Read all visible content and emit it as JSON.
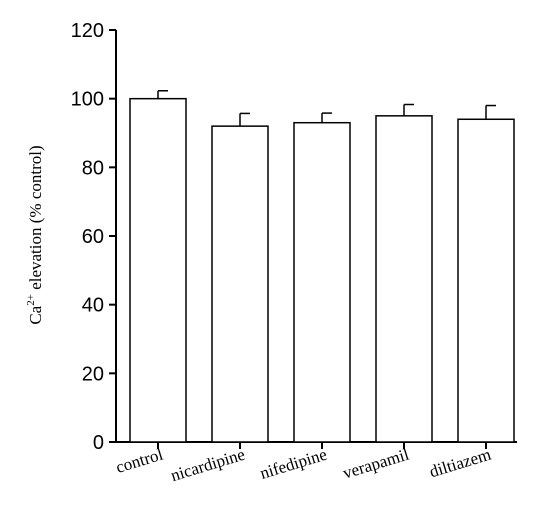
{
  "chart_data": {
    "type": "bar",
    "categories": [
      "control",
      "nicardipine",
      "nifedipine",
      "verapamil",
      "diltiazem"
    ],
    "series": [
      {
        "values": [
          100,
          92,
          93,
          95,
          94
        ],
        "errors": [
          2.3,
          3.7,
          2.8,
          3.3,
          4.0
        ]
      }
    ],
    "ylabel": {
      "base": "Ca",
      "sup": "2+",
      "rest": " elevation (% control)"
    },
    "yticks": [
      0,
      20,
      40,
      60,
      80,
      100,
      120
    ],
    "ylim": [
      0,
      120
    ],
    "grid": false,
    "bar_fill": "#ffffff",
    "line_color": "#000000"
  }
}
